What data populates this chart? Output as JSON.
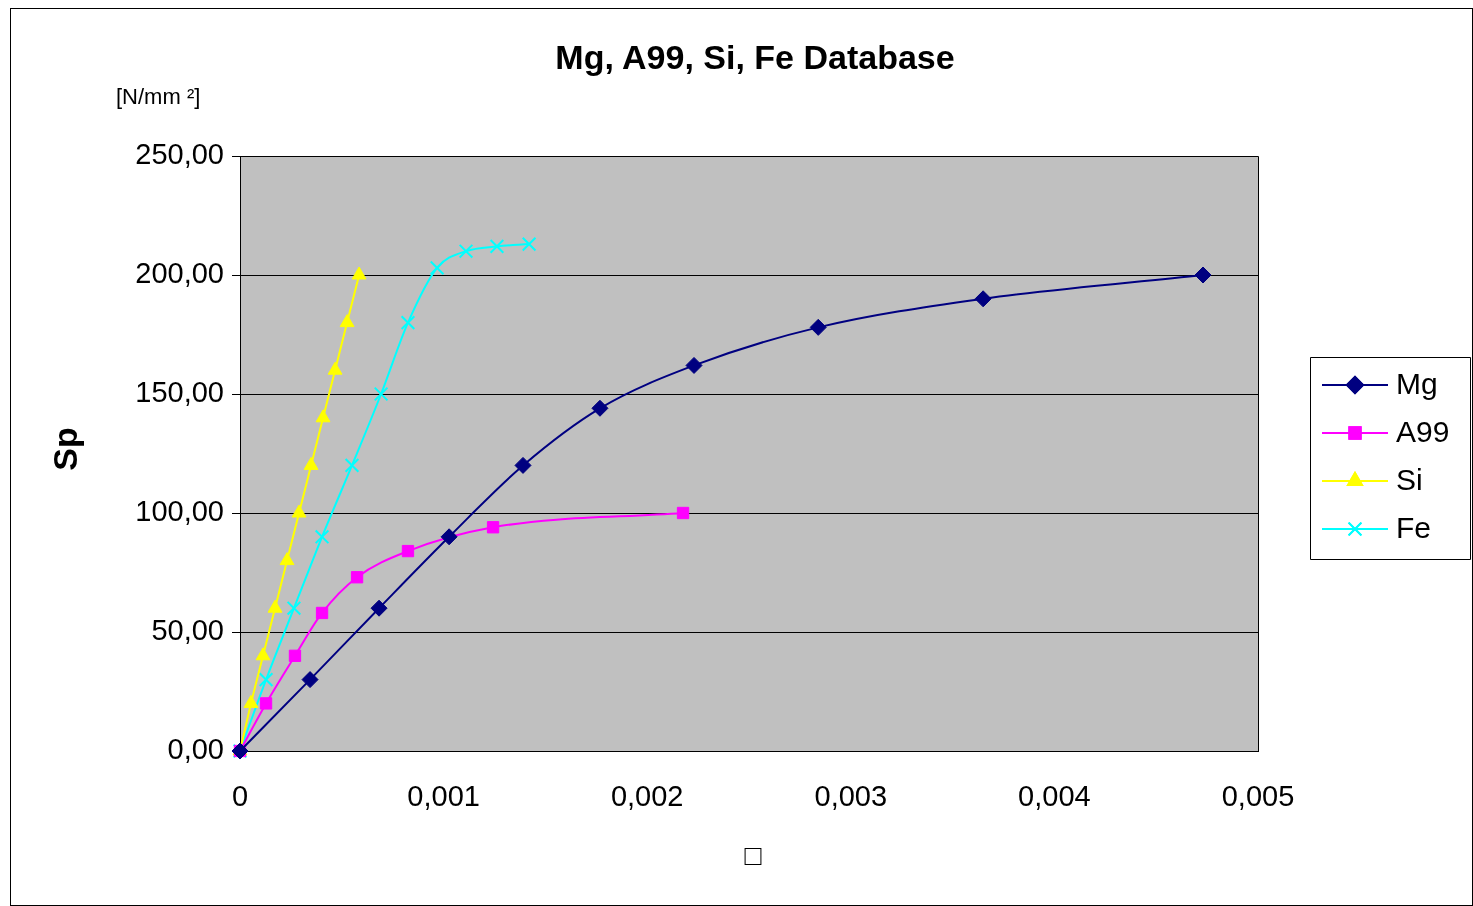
{
  "chart_data": {
    "type": "line",
    "title": "Mg, A99, Si, Fe Database",
    "xlabel": "□",
    "ylabel": "Sp",
    "annotations": [
      "[N/mm ²]"
    ],
    "xlim": [
      0,
      0.005
    ],
    "xticks": [
      0,
      {
        "value": 0.001,
        "label": "0,001"
      },
      {
        "value": 0.002,
        "label": "0,002"
      },
      {
        "value": 0.003,
        "label": "0,003"
      },
      {
        "value": 0.004,
        "label": "0,004"
      },
      {
        "value": 0.005,
        "label": "0,005"
      }
    ],
    "ylim": [
      0,
      250
    ],
    "yticks": [
      {
        "value": 0,
        "label": "0,00"
      },
      {
        "value": 50,
        "label": "50,00"
      },
      {
        "value": 100,
        "label": "100,00"
      },
      {
        "value": 150,
        "label": "150,00"
      },
      {
        "value": 200,
        "label": "200,00"
      },
      {
        "value": 250,
        "label": "250,00"
      }
    ],
    "grid": "y",
    "legend": "right",
    "line_style": "solid",
    "series": [
      {
        "name": "Mg",
        "color": "#000080",
        "marker": "diamond",
        "x": [
          0,
          0.000344,
          0.000683,
          0.001027,
          0.00139,
          0.001768,
          0.00223,
          0.00284,
          0.00365,
          0.00473
        ],
        "values": [
          0,
          30,
          60,
          90,
          120,
          144,
          162,
          178,
          190,
          200
        ]
      },
      {
        "name": "A99",
        "color": "#ff00ff",
        "marker": "square",
        "x": [
          0,
          0.000128,
          0.00027,
          0.000403,
          0.000575,
          0.000825,
          0.001243,
          0.002176
        ],
        "values": [
          0,
          20,
          40,
          58,
          73,
          84,
          94,
          100
        ]
      },
      {
        "name": "Si",
        "color": "#ffff00",
        "marker": "triangle",
        "x": [
          0,
          5.4e-05,
          0.000113,
          0.000172,
          0.000231,
          0.00029,
          0.000349,
          0.000408,
          0.000467,
          0.000526,
          0.000585
        ],
        "values": [
          0,
          20,
          40,
          60,
          80,
          100,
          120,
          140,
          160,
          180,
          200
        ]
      },
      {
        "name": "Fe",
        "color": "#00ffff",
        "marker": "cross",
        "x": [
          0,
          0.000128,
          0.000265,
          0.000403,
          0.00055,
          0.000693,
          0.000825,
          0.000968,
          0.00111,
          0.001262,
          0.00142
        ],
        "values": [
          0,
          30,
          60,
          90,
          120,
          150,
          180,
          203,
          210,
          212,
          213
        ]
      }
    ]
  }
}
